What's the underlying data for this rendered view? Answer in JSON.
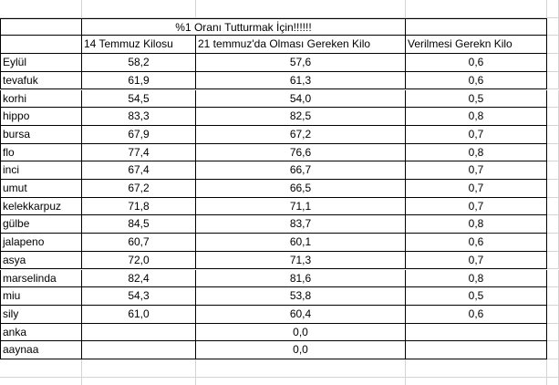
{
  "table": {
    "title": "%1 Oranı Tutturmak İçin!!!!!!",
    "headers": [
      "14 Temmuz Kilosu",
      "21 temmuz'da Olması Gereken Kilo",
      "Verilmesi Gerekn Kilo"
    ],
    "rows": [
      [
        "Eylül",
        "58,2",
        "57,6",
        "0,6"
      ],
      [
        "tevafuk",
        "61,9",
        "61,3",
        "0,6"
      ],
      [
        "korhi",
        "54,5",
        "54,0",
        "0,5"
      ],
      [
        "hippo",
        "83,3",
        "82,5",
        "0,8"
      ],
      [
        "bursa",
        "67,9",
        "67,2",
        "0,7"
      ],
      [
        "flo",
        "77,4",
        "76,6",
        "0,8"
      ],
      [
        "inci",
        "67,4",
        "66,7",
        "0,7"
      ],
      [
        "umut",
        "67,2",
        "66,5",
        "0,7"
      ],
      [
        "kelekkarpuz",
        "71,8",
        "71,1",
        "0,7"
      ],
      [
        "gülbe",
        "84,5",
        "83,7",
        "0,8"
      ],
      [
        "jalapeno",
        "60,7",
        "60,1",
        "0,6"
      ],
      [
        "asya",
        "72,0",
        "71,3",
        "0,7"
      ],
      [
        "marselinda",
        "82,4",
        "81,6",
        "0,8"
      ],
      [
        "miu",
        "54,3",
        "53,8",
        "0,5"
      ],
      [
        "sily",
        "61,0",
        "60,4",
        "0,6"
      ],
      [
        "anka",
        null,
        "0,0",
        null
      ],
      [
        "aaynaa",
        null,
        "0,0",
        null
      ]
    ]
  }
}
